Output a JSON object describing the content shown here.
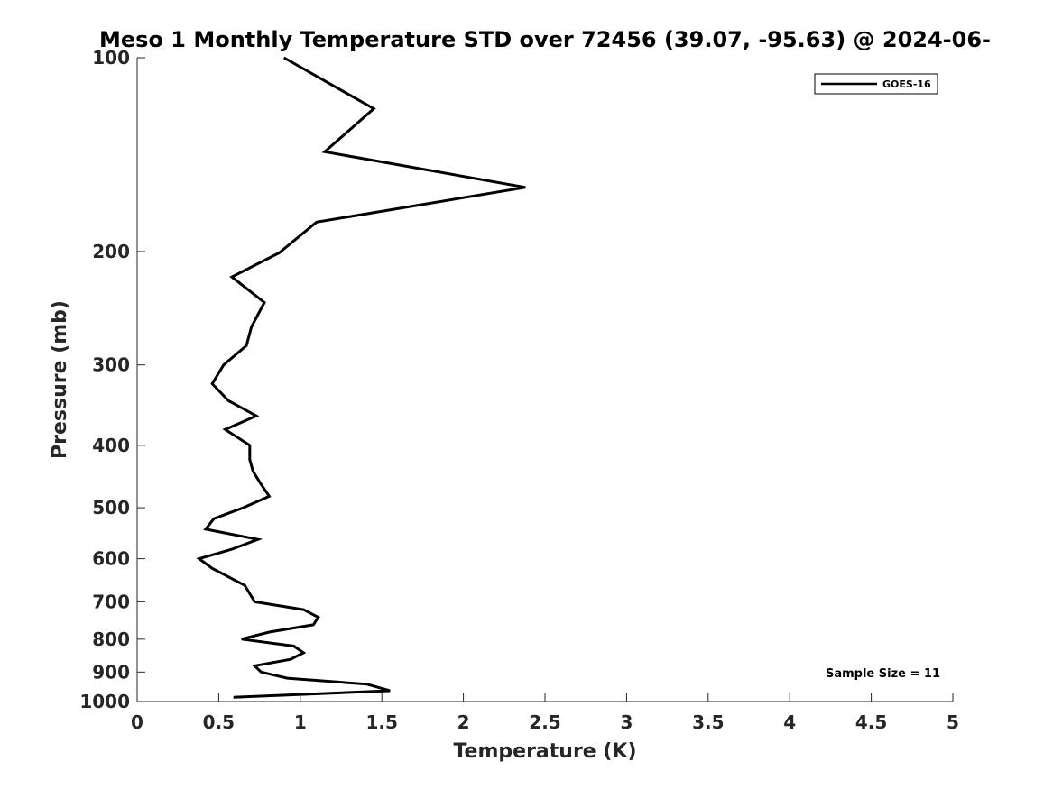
{
  "chart_data": {
    "type": "line",
    "title": "Meso 1 Monthly Temperature STD over 72456 (39.07, -95.63) @ 2024-06-",
    "xlabel": "Temperature (K)",
    "ylabel": "Pressure (mb)",
    "xlim": [
      0,
      5
    ],
    "ylim": [
      1000,
      100
    ],
    "yscale": "log",
    "xticks": [
      "0",
      "0.5",
      "1",
      "1.5",
      "2",
      "2.5",
      "3",
      "3.5",
      "4",
      "4.5",
      "5"
    ],
    "yticks": [
      "100",
      "200",
      "300",
      "400",
      "500",
      "600",
      "700",
      "800",
      "900",
      "1000"
    ],
    "grid": false,
    "legend_position": "top-right",
    "annotation": "Sample Size = 11",
    "series": [
      {
        "name": "GOES-16",
        "color": "#000000",
        "x": [
          0.9,
          1.45,
          1.15,
          2.38,
          1.1,
          0.87,
          0.58,
          0.78,
          0.7,
          0.67,
          0.53,
          0.46,
          0.56,
          0.73,
          0.54,
          0.69,
          0.69,
          0.71,
          0.76,
          0.81,
          0.65,
          0.47,
          0.42,
          0.74,
          0.58,
          0.38,
          0.46,
          0.66,
          0.72,
          1.02,
          1.11,
          1.08,
          0.81,
          0.64,
          0.96,
          1.02,
          0.94,
          0.72,
          0.76,
          0.92,
          1.41,
          1.55,
          0.59
        ],
        "y": [
          100,
          120,
          140,
          159,
          180,
          201,
          219,
          240,
          262,
          280,
          300,
          321,
          341,
          360,
          378,
          400,
          421,
          439,
          460,
          480,
          500,
          520,
          540,
          560,
          580,
          600,
          621,
          660,
          700,
          720,
          740,
          760,
          780,
          800,
          820,
          840,
          860,
          880,
          900,
          920,
          940,
          962,
          985
        ]
      }
    ]
  }
}
